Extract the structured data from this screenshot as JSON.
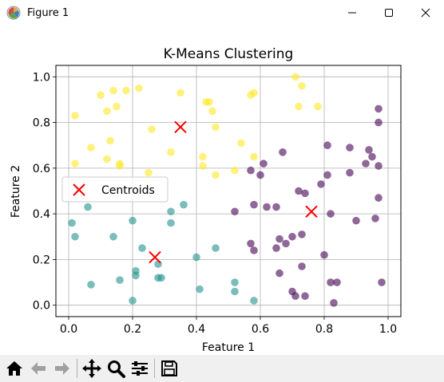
{
  "window": {
    "title": "Figure 1",
    "icon": "matplotlib-figure-icon",
    "controls": [
      "minimize-icon",
      "maximize-icon",
      "close-icon"
    ]
  },
  "toolbar": {
    "buttons": [
      {
        "name": "home-button",
        "icon": "home-icon"
      },
      {
        "name": "back-button",
        "icon": "back-arrow-icon"
      },
      {
        "name": "forward-button",
        "icon": "forward-arrow-icon"
      },
      {
        "name": "pan-button",
        "icon": "move-icon"
      },
      {
        "name": "zoom-button",
        "icon": "zoom-icon"
      },
      {
        "name": "configure-subplots-button",
        "icon": "sliders-icon"
      },
      {
        "name": "save-button",
        "icon": "save-icon"
      }
    ]
  },
  "chart_data": {
    "type": "scatter",
    "title": "K-Means Clustering",
    "xlabel": "Feature 1",
    "ylabel": "Feature 2",
    "xlim": [
      -0.04,
      1.04
    ],
    "ylim": [
      -0.05,
      1.05
    ],
    "xticks": [
      "0.0",
      "0.2",
      "0.4",
      "0.6",
      "0.8",
      "1.0"
    ],
    "yticks": [
      "0.0",
      "0.2",
      "0.4",
      "0.6",
      "0.8",
      "1.0"
    ],
    "grid": true,
    "legend": {
      "placement": "center-left",
      "entries": [
        "Centroids"
      ]
    },
    "colors": {
      "cluster_top": "#fde725",
      "cluster_bottom": "#21918c",
      "cluster_right": "#440154",
      "centroid": "#ff0000"
    },
    "series": [
      {
        "cluster": "top",
        "color": "#fde725",
        "points": [
          [
            0.02,
            0.83
          ],
          [
            0.02,
            0.62
          ],
          [
            0.07,
            0.69
          ],
          [
            0.1,
            0.92
          ],
          [
            0.12,
            0.85
          ],
          [
            0.12,
            0.64
          ],
          [
            0.13,
            0.72
          ],
          [
            0.14,
            0.94
          ],
          [
            0.15,
            0.87
          ],
          [
            0.16,
            0.62
          ],
          [
            0.16,
            0.61
          ],
          [
            0.18,
            0.94
          ],
          [
            0.22,
            0.95
          ],
          [
            0.25,
            0.58
          ],
          [
            0.26,
            0.77
          ],
          [
            0.32,
            0.67
          ],
          [
            0.35,
            0.93
          ],
          [
            0.42,
            0.65
          ],
          [
            0.42,
            0.61
          ],
          [
            0.43,
            0.89
          ],
          [
            0.44,
            0.89
          ],
          [
            0.45,
            0.85
          ],
          [
            0.46,
            0.57
          ],
          [
            0.46,
            0.78
          ],
          [
            0.52,
            0.59
          ],
          [
            0.54,
            0.71
          ],
          [
            0.57,
            0.92
          ],
          [
            0.58,
            0.93
          ],
          [
            0.58,
            0.65
          ],
          [
            0.71,
            1.0
          ],
          [
            0.72,
            0.87
          ],
          [
            0.73,
            0.96
          ],
          [
            0.78,
            0.87
          ]
        ]
      },
      {
        "cluster": "bottom",
        "color": "#21918c",
        "points": [
          [
            0.01,
            0.36
          ],
          [
            0.02,
            0.3
          ],
          [
            0.06,
            0.43
          ],
          [
            0.07,
            0.09
          ],
          [
            0.14,
            0.3
          ],
          [
            0.16,
            0.11
          ],
          [
            0.2,
            0.37
          ],
          [
            0.2,
            0.02
          ],
          [
            0.21,
            0.15
          ],
          [
            0.21,
            0.13
          ],
          [
            0.23,
            0.25
          ],
          [
            0.28,
            0.12
          ],
          [
            0.28,
            0.18
          ],
          [
            0.29,
            0.12
          ],
          [
            0.32,
            0.41
          ],
          [
            0.32,
            0.36
          ],
          [
            0.36,
            0.44
          ],
          [
            0.4,
            0.21
          ],
          [
            0.41,
            0.07
          ],
          [
            0.46,
            0.25
          ],
          [
            0.52,
            0.06
          ],
          [
            0.52,
            0.1
          ],
          [
            0.58,
            0.02
          ]
        ]
      },
      {
        "cluster": "right",
        "color": "#440154",
        "points": [
          [
            0.52,
            0.41
          ],
          [
            0.57,
            0.59
          ],
          [
            0.57,
            0.27
          ],
          [
            0.58,
            0.24
          ],
          [
            0.58,
            0.44
          ],
          [
            0.6,
            0.57
          ],
          [
            0.61,
            0.62
          ],
          [
            0.62,
            0.43
          ],
          [
            0.65,
            0.43
          ],
          [
            0.65,
            0.25
          ],
          [
            0.66,
            0.29
          ],
          [
            0.66,
            0.14
          ],
          [
            0.67,
            0.67
          ],
          [
            0.68,
            0.27
          ],
          [
            0.7,
            0.3
          ],
          [
            0.7,
            0.06
          ],
          [
            0.71,
            0.04
          ],
          [
            0.72,
            0.5
          ],
          [
            0.73,
            0.31
          ],
          [
            0.73,
            0.17
          ],
          [
            0.74,
            0.04
          ],
          [
            0.74,
            0.49
          ],
          [
            0.79,
            0.53
          ],
          [
            0.8,
            0.22
          ],
          [
            0.81,
            0.7
          ],
          [
            0.81,
            0.57
          ],
          [
            0.82,
            0.4
          ],
          [
            0.82,
            0.1
          ],
          [
            0.83,
            0.01
          ],
          [
            0.84,
            0.1
          ],
          [
            0.88,
            0.69
          ],
          [
            0.88,
            0.58
          ],
          [
            0.9,
            0.37
          ],
          [
            0.93,
            0.62
          ],
          [
            0.94,
            0.68
          ],
          [
            0.95,
            0.65
          ],
          [
            0.96,
            0.38
          ],
          [
            0.97,
            0.86
          ],
          [
            0.97,
            0.8
          ],
          [
            0.97,
            0.61
          ],
          [
            0.97,
            0.47
          ],
          [
            0.98,
            0.1
          ]
        ]
      }
    ],
    "centroids": [
      [
        0.35,
        0.78
      ],
      [
        0.27,
        0.21
      ],
      [
        0.76,
        0.41
      ]
    ]
  }
}
